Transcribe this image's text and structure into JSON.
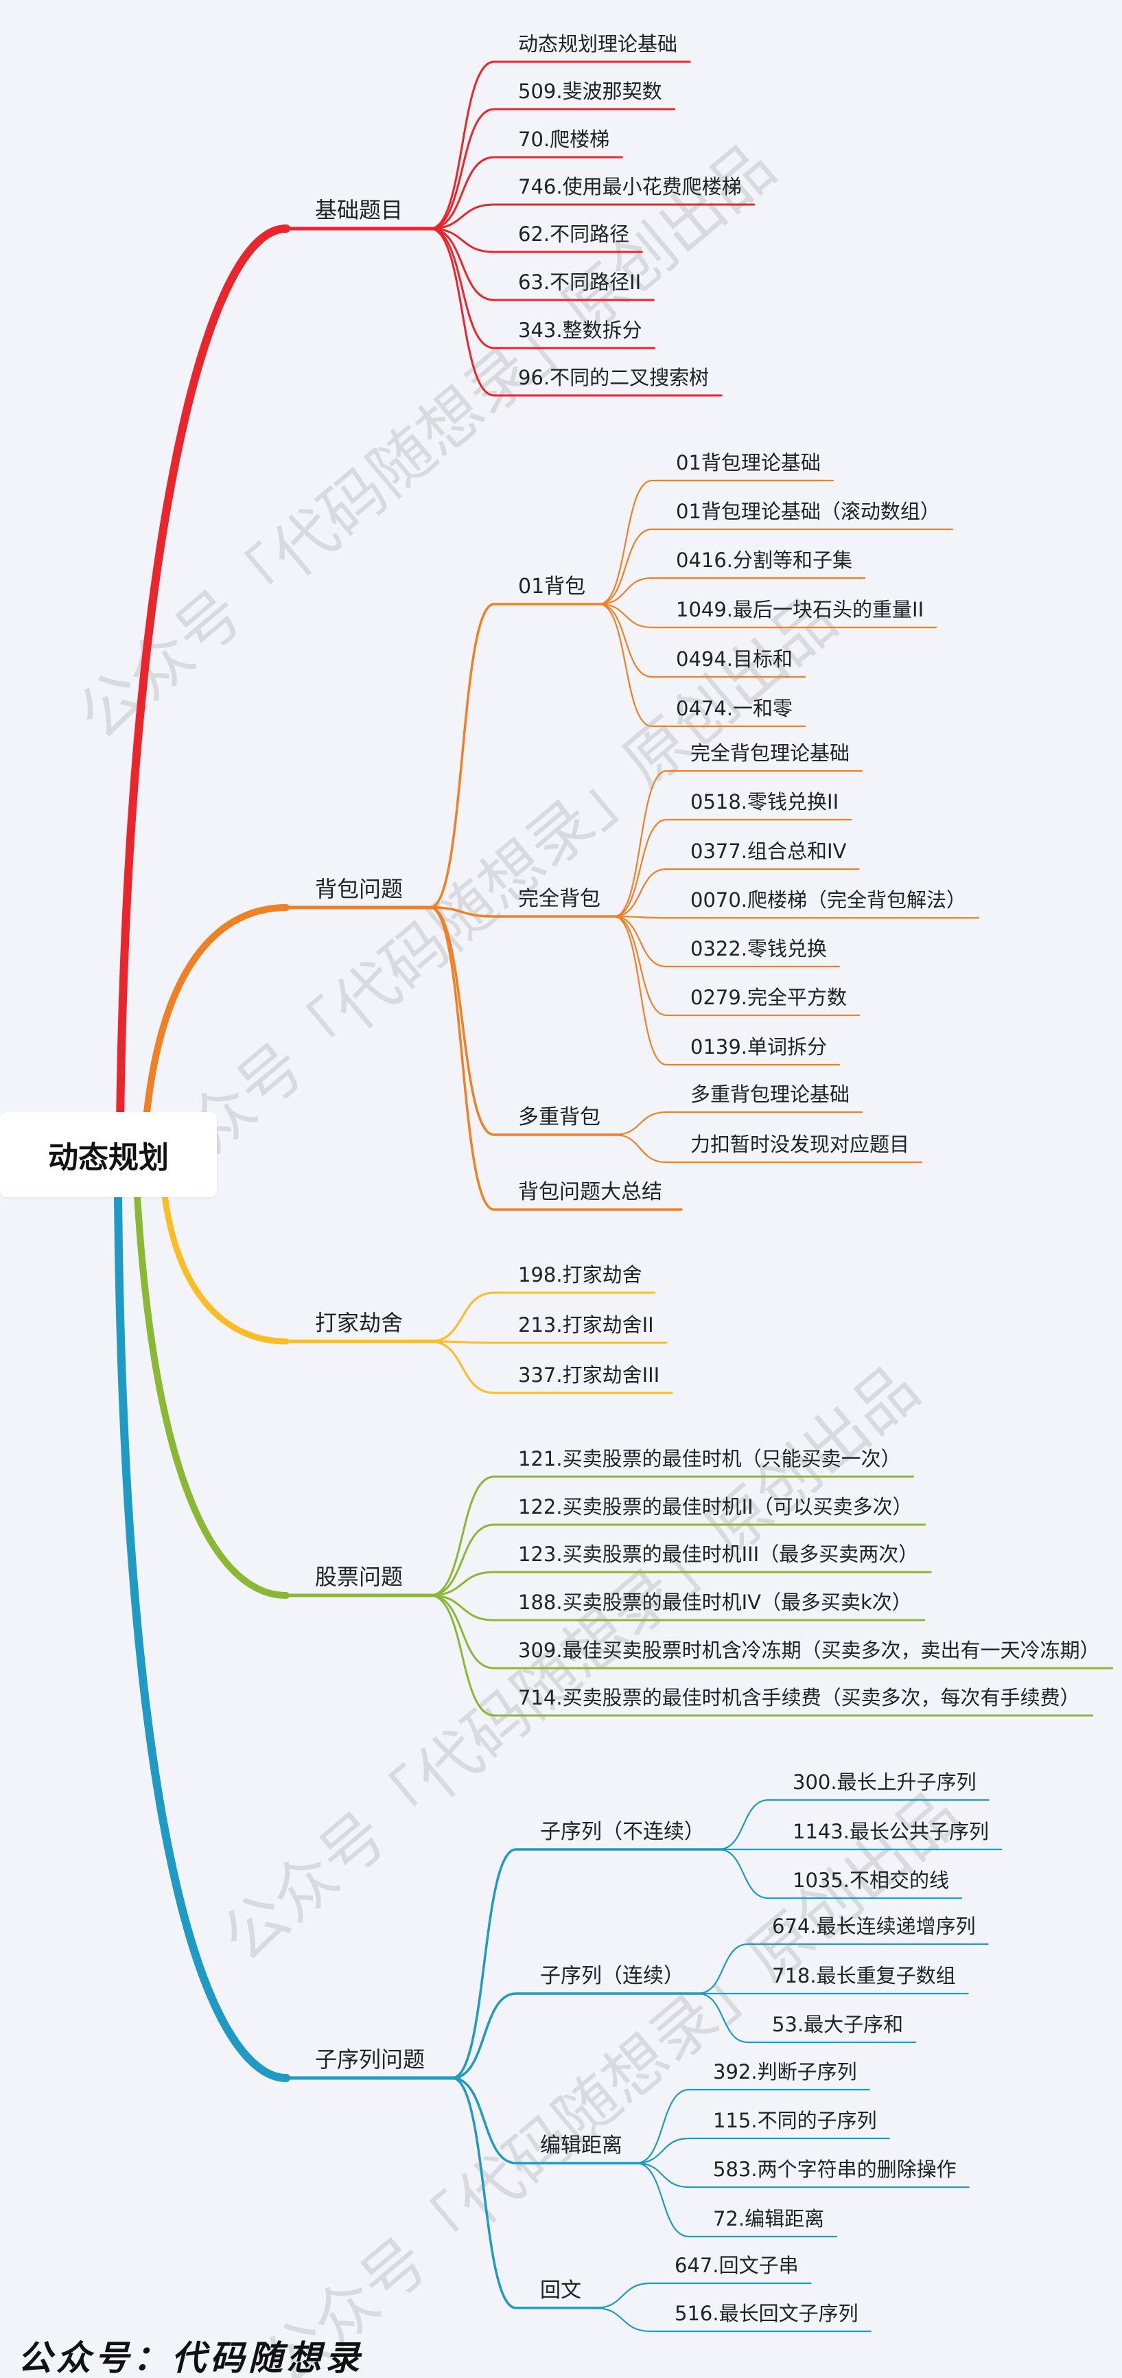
{
  "root": {
    "label": "动态规划"
  },
  "watermark": "公众号「代码随想录」原创出品",
  "footer": "公众号：代码随想录",
  "branches": [
    {
      "label": "基础题目",
      "color": "#e8262b",
      "items": [
        {
          "label": "动态规划理论基础"
        },
        {
          "label": "509.斐波那契数"
        },
        {
          "label": "70.爬楼梯"
        },
        {
          "label": "746.使用最小花费爬楼梯"
        },
        {
          "label": "62.不同路径"
        },
        {
          "label": "63.不同路径II"
        },
        {
          "label": "343.整数拆分"
        },
        {
          "label": "96.不同的二叉搜索树"
        }
      ]
    },
    {
      "label": "背包问题",
      "color": "#f08024",
      "groups": [
        {
          "label": "01背包",
          "items": [
            {
              "label": "01背包理论基础"
            },
            {
              "label": "01背包理论基础（滚动数组）"
            },
            {
              "label": "0416.分割等和子集"
            },
            {
              "label": "1049.最后一块石头的重量II"
            },
            {
              "label": "0494.目标和"
            },
            {
              "label": "0474.一和零"
            }
          ]
        },
        {
          "label": "完全背包",
          "items": [
            {
              "label": "完全背包理论基础"
            },
            {
              "label": "0518.零钱兑换II"
            },
            {
              "label": "0377.组合总和IV"
            },
            {
              "label": "0070.爬楼梯（完全背包解法）"
            },
            {
              "label": "0322.零钱兑换"
            },
            {
              "label": "0279.完全平方数"
            },
            {
              "label": "0139.单词拆分"
            }
          ]
        },
        {
          "label": "多重背包",
          "items": [
            {
              "label": "多重背包理论基础"
            },
            {
              "label": "力扣暂时没发现对应题目"
            }
          ]
        },
        {
          "label": "背包问题大总结",
          "items": []
        }
      ]
    },
    {
      "label": "打家劫舍",
      "color": "#fbbd24",
      "items": [
        {
          "label": "198.打家劫舍"
        },
        {
          "label": "213.打家劫舍II"
        },
        {
          "label": "337.打家劫舍III"
        }
      ]
    },
    {
      "label": "股票问题",
      "color": "#8bb834",
      "items": [
        {
          "label": "121.买卖股票的最佳时机（只能买卖一次）"
        },
        {
          "label": "122.买卖股票的最佳时机II（可以买卖多次）"
        },
        {
          "label": "123.买卖股票的最佳时机III（最多买卖两次）"
        },
        {
          "label": "188.买卖股票的最佳时机IV（最多买卖k次）"
        },
        {
          "label": "309.最佳买卖股票时机含冷冻期（买卖多次，卖出有一天冷冻期）"
        },
        {
          "label": "714.买卖股票的最佳时机含手续费（买卖多次，每次有手续费）"
        }
      ]
    },
    {
      "label": "子序列问题",
      "color": "#1f9ac4",
      "groups": [
        {
          "label": "子序列（不连续）",
          "items": [
            {
              "label": "300.最长上升子序列"
            },
            {
              "label": "1143.最长公共子序列"
            },
            {
              "label": "1035.不相交的线"
            }
          ]
        },
        {
          "label": "子序列（连续）",
          "items": [
            {
              "label": "674.最长连续递增序列"
            },
            {
              "label": "718.最长重复子数组"
            },
            {
              "label": "53.最大子序和"
            }
          ]
        },
        {
          "label": "编辑距离",
          "items": [
            {
              "label": "392.判断子序列"
            },
            {
              "label": "115.不同的子序列"
            },
            {
              "label": "583.两个字符串的删除操作"
            },
            {
              "label": "72.编辑距离"
            }
          ]
        },
        {
          "label": "回文",
          "items": [
            {
              "label": "647.回文子串"
            },
            {
              "label": "516.最长回文子序列"
            }
          ]
        }
      ]
    }
  ]
}
